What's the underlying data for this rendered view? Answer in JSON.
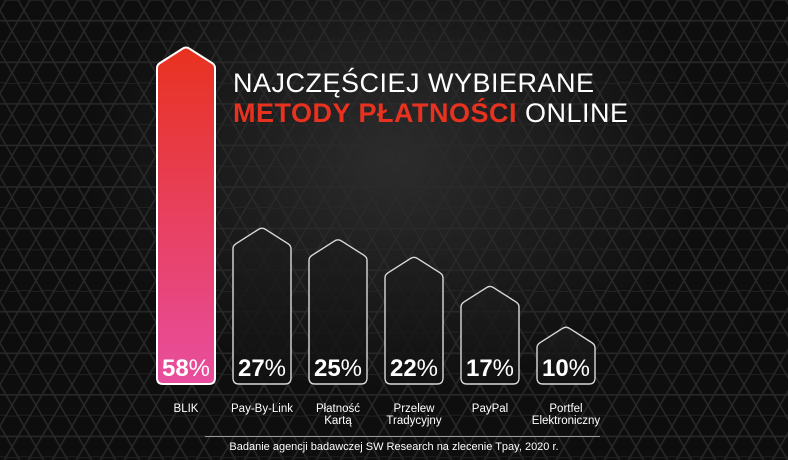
{
  "title": {
    "line1": "NAJCZĘŚCIEJ WYBIERANE",
    "line2_accent": "METODY PŁATNOŚCI",
    "line2_rest": " ONLINE"
  },
  "colors": {
    "accent": "#e8321f",
    "highlight_top": "#e8321f",
    "highlight_bottom": "#e84e9e",
    "outline": "#d9d9d9"
  },
  "chart_data": {
    "type": "bar",
    "title": "NAJCZĘŚCIEJ WYBIERANE METODY PŁATNOŚCI ONLINE",
    "categories": [
      "BLIK",
      "Pay-By-Link",
      "Płatność\nKartą",
      "Przelew\nTradycyjny",
      "PayPal",
      "Portfel\nElektroniczny"
    ],
    "values": [
      58,
      27,
      25,
      22,
      17,
      10
    ],
    "value_labels": [
      "58%",
      "27%",
      "25%",
      "22%",
      "17%",
      "10%"
    ],
    "unit": "%",
    "highlighted_index": 0,
    "ylim": [
      0,
      58
    ],
    "grid": false,
    "legend": "none"
  },
  "footer": {
    "source": "Badanie agencji badawczej SW Research na zlecenie Tpay, 2020 r."
  }
}
